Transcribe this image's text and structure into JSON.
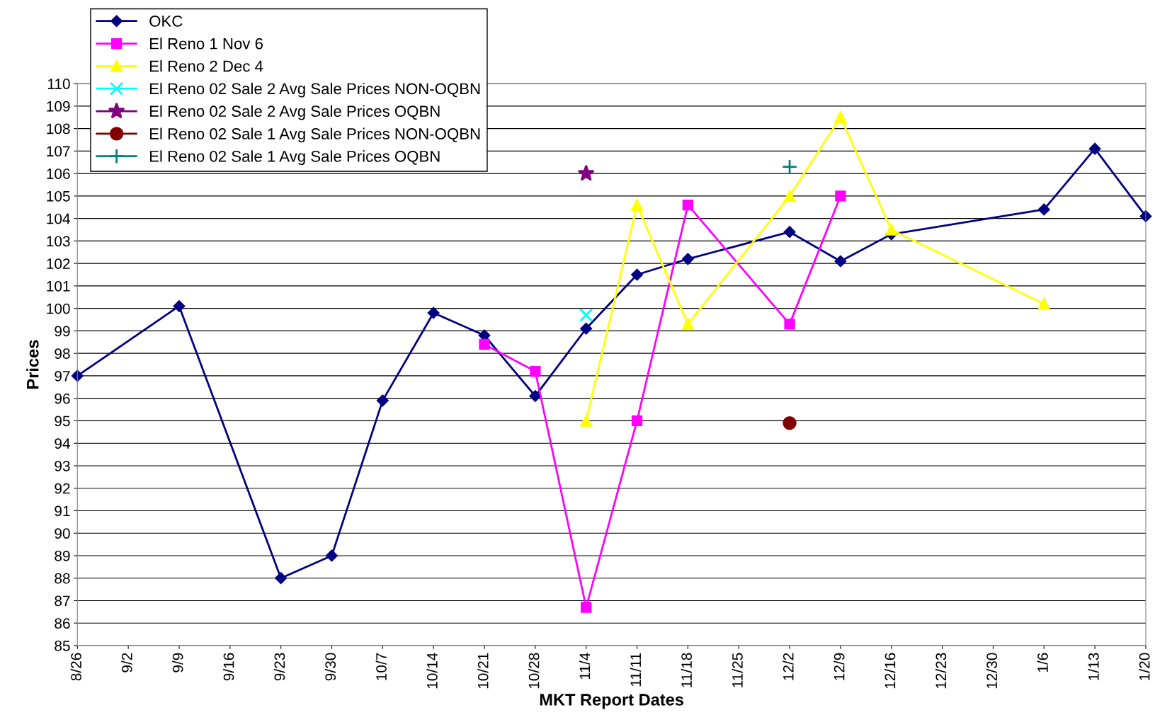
{
  "chart_data": {
    "type": "line",
    "xlabel": "MKT Report Dates",
    "ylabel": "Prices",
    "categories": [
      "8/26",
      "9/2",
      "9/9",
      "9/16",
      "9/23",
      "9/30",
      "10/7",
      "10/14",
      "10/21",
      "10/28",
      "11/4",
      "11/11",
      "11/18",
      "11/25",
      "12/2",
      "12/9",
      "12/16",
      "12/23",
      "12/30",
      "1/6",
      "1/13",
      "1/20"
    ],
    "ylim": [
      85,
      110
    ],
    "yticks": [
      85,
      86,
      87,
      88,
      89,
      90,
      91,
      92,
      93,
      94,
      95,
      96,
      97,
      98,
      99,
      100,
      101,
      102,
      103,
      104,
      105,
      106,
      107,
      108,
      109,
      110
    ],
    "grid": "y",
    "legend": "top left",
    "series": [
      {
        "name": "OKC",
        "color": "#000080",
        "marker": "diamond",
        "x": [
          "8/26",
          "9/9",
          "9/23",
          "9/30",
          "10/7",
          "10/14",
          "10/21",
          "10/28",
          "11/4",
          "11/11",
          "11/18",
          "12/2",
          "12/9",
          "12/16",
          "1/6",
          "1/13",
          "1/20"
        ],
        "values": [
          97.0,
          100.1,
          88.0,
          89.0,
          95.9,
          99.8,
          98.8,
          96.1,
          99.1,
          101.5,
          102.2,
          103.4,
          102.1,
          103.3,
          104.4,
          107.1,
          104.1
        ]
      },
      {
        "name": "El Reno 1 Nov 6",
        "color": "#ff00ff",
        "marker": "square",
        "x": [
          "10/21",
          "10/28",
          "11/4",
          "11/11",
          "11/18",
          "12/2",
          "12/9"
        ],
        "values": [
          98.4,
          97.2,
          86.7,
          95.0,
          104.6,
          99.3,
          105.0
        ]
      },
      {
        "name": "El Reno 2 Dec 4",
        "color": "#ffff00",
        "marker": "triangle",
        "x": [
          "11/4",
          "11/11",
          "11/18",
          "12/2",
          "12/9",
          "12/16",
          "1/6"
        ],
        "values": [
          95.0,
          104.6,
          99.3,
          105.0,
          108.5,
          103.5,
          100.2
        ]
      },
      {
        "name": "El Reno 02 Sale 2 Avg Sale Prices NON-OQBN",
        "color": "#00ffff",
        "marker": "cross",
        "x": [
          "11/4"
        ],
        "values": [
          99.7
        ]
      },
      {
        "name": "El Reno 02 Sale 2 Avg Sale Prices OQBN",
        "color": "#800080",
        "marker": "star",
        "x": [
          "11/4"
        ],
        "values": [
          106.0
        ]
      },
      {
        "name": "El Reno 02 Sale 1 Avg Sale Prices NON-OQBN",
        "color": "#800000",
        "marker": "circle",
        "x": [
          "12/2"
        ],
        "values": [
          94.9
        ]
      },
      {
        "name": "El Reno 02 Sale 1 Avg Sale Prices OQBN",
        "color": "#008080",
        "marker": "plus",
        "x": [
          "12/2"
        ],
        "values": [
          106.3
        ]
      }
    ]
  }
}
